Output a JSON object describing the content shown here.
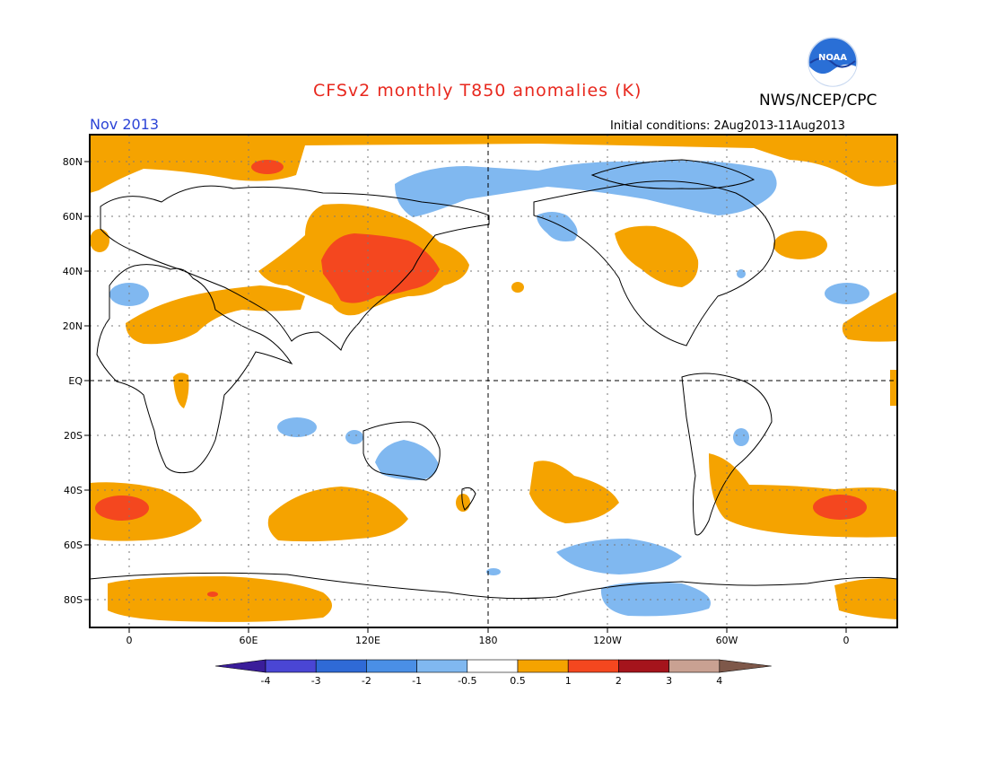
{
  "title": "CFSv2 monthly T850 anomalies (K)",
  "month": "Nov 2013",
  "org": "NWS/NCEP/CPC",
  "initial_conditions": "Initial conditions: 2Aug2013-11Aug2013",
  "logo_text": "NOAA",
  "lat_labels": [
    "80N",
    "60N",
    "40N",
    "20N",
    "EQ",
    "20S",
    "40S",
    "60S",
    "80S"
  ],
  "lon_labels": [
    "0",
    "60E",
    "120E",
    "180",
    "120W",
    "60W",
    "0"
  ],
  "legend": {
    "labels": [
      "-4",
      "-3",
      "-2",
      "-1",
      "-0.5",
      "0.5",
      "1",
      "2",
      "3",
      "4"
    ],
    "colors": [
      "#3a1d9a",
      "#4a46d4",
      "#2f6ad6",
      "#4a8fe6",
      "#80b8f0",
      "#ffffff",
      "#f5a300",
      "#f4471f",
      "#a5141c",
      "#c9a192",
      "#7e584a"
    ]
  },
  "colors": {
    "warm1": "#f5a300",
    "warm2": "#f4471f",
    "cool1": "#80b8f0",
    "title": "#e8281e",
    "month": "#2b43d6"
  }
}
